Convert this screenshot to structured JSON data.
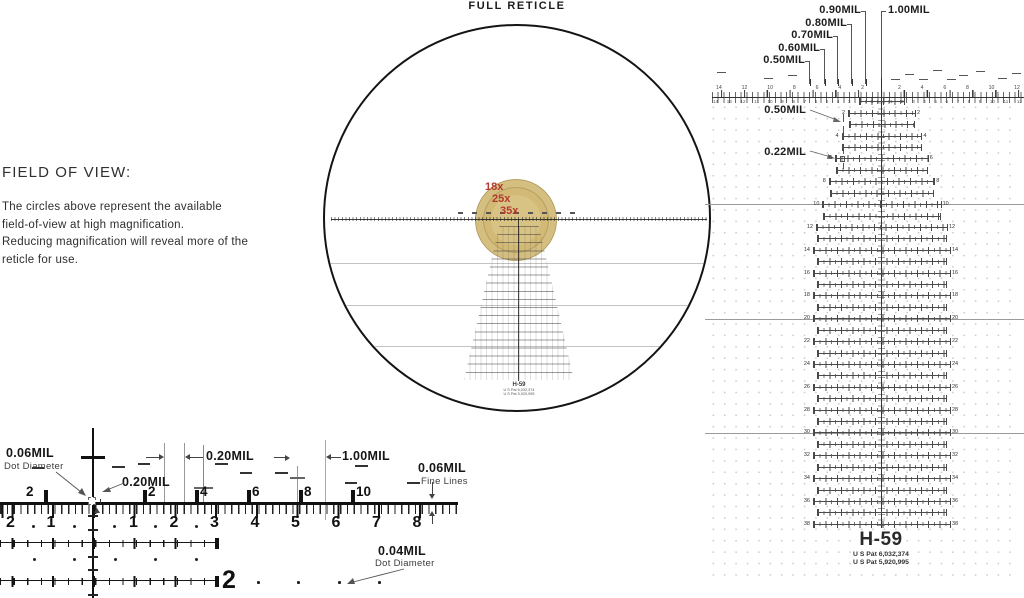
{
  "full_reticle": {
    "title": "FULL RETICLE",
    "magnifications": [
      "18x",
      "25x",
      "35x"
    ],
    "mini_title": "H-59",
    "mini_patents": [
      "U S Pat 6,032,374",
      "U S Pat 5,920,995"
    ],
    "accent_color": "#b23a2e",
    "fov_colors": [
      "#d5bf80",
      "#d2ba76",
      "#d8c384"
    ]
  },
  "field_of_view": {
    "heading": "FIELD OF VIEW:",
    "body_lines": [
      "The circles above represent the available",
      "field-of-view at high magnification.",
      "Reducing magnification will reveal more of the",
      "reticle for use."
    ]
  },
  "right_diagram": {
    "top_labels": [
      "0.50MIL",
      "0.60MIL",
      "0.70MIL",
      "0.80MIL",
      "0.90MIL",
      "1.00MIL"
    ],
    "label_050": "0.50MIL",
    "label_022": "0.22MIL",
    "row_numbers": [
      2,
      4,
      6,
      8,
      10,
      12,
      14,
      16,
      18,
      20,
      22,
      24,
      26,
      28,
      30,
      32,
      34,
      36,
      38
    ],
    "axis_above_left": [
      "14",
      "12",
      "10",
      "8",
      "6",
      "4",
      "2"
    ],
    "axis_above_right": [
      "2",
      "4",
      "6",
      "8",
      "10",
      "12"
    ],
    "axis_below_left": [
      "14",
      "13",
      "12",
      "11",
      "10",
      "9",
      "8",
      "7",
      "6",
      "5",
      "4",
      "3",
      "2",
      "1"
    ],
    "axis_below_right": [
      "1",
      "2",
      "3",
      "4",
      "5",
      "6",
      "7",
      "8",
      "9",
      "10",
      "11",
      "12"
    ],
    "title": "H-59",
    "patents": [
      "U S Pat  6,032,374",
      "U S Pat  5,920,995"
    ]
  },
  "detail": {
    "dot_top_value": "0.06MIL",
    "dot_top_caption": "Dot Diameter",
    "gap_label": "0.20MIL",
    "tick_label": "0.20MIL",
    "mil_label": "1.00MIL",
    "fine_value": "0.06MIL",
    "fine_caption": "Fine Lines",
    "dot_bottom_value": "0.04MIL",
    "dot_bottom_caption": "Dot Diameter",
    "upper_numbers": [
      "2",
      "2",
      "4",
      "6",
      "8",
      "10"
    ],
    "below_numbers_left": [
      "2",
      "1"
    ],
    "below_numbers_right": [
      "1",
      "2",
      "3",
      "4",
      "5",
      "6",
      "7",
      "8"
    ],
    "row2_label": "2"
  }
}
